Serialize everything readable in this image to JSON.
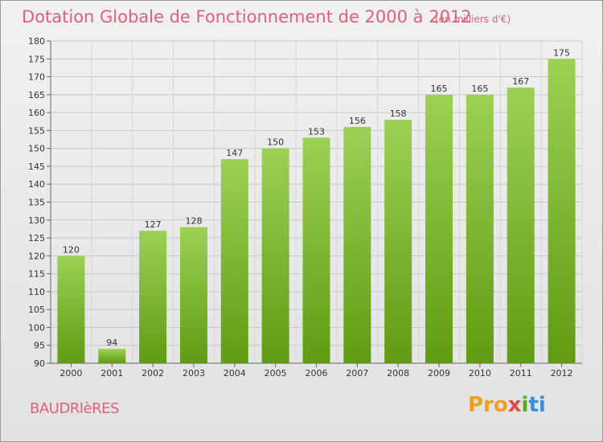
{
  "title": "Dotation Globale de Fonctionnement de 2000 à 2012",
  "subtitle": "(en milliers d'€)",
  "commune": "BAUDRIèRES",
  "logo": {
    "p1": "Pro",
    "p2": "x",
    "p3": "i",
    "p4": "ti",
    "icon": "proxiti-logo"
  },
  "colors": {
    "bar_light": "#9dd055",
    "bar_dark": "#5f9c12",
    "title": "#e0607a"
  },
  "chart_data": {
    "type": "bar",
    "categories": [
      "2000",
      "2001",
      "2002",
      "2003",
      "2004",
      "2005",
      "2006",
      "2007",
      "2008",
      "2009",
      "2010",
      "2011",
      "2012"
    ],
    "values": [
      120,
      94,
      127,
      128,
      147,
      150,
      153,
      156,
      158,
      165,
      165,
      167,
      175
    ],
    "title": "Dotation Globale de Fonctionnement de 2000 à 2012",
    "xlabel": "",
    "ylabel": "",
    "ylim": [
      90,
      180
    ],
    "yticks": [
      90,
      95,
      100,
      105,
      110,
      115,
      120,
      125,
      130,
      135,
      140,
      145,
      150,
      155,
      160,
      165,
      170,
      175,
      180
    ],
    "grid": true,
    "data_labels": true
  }
}
